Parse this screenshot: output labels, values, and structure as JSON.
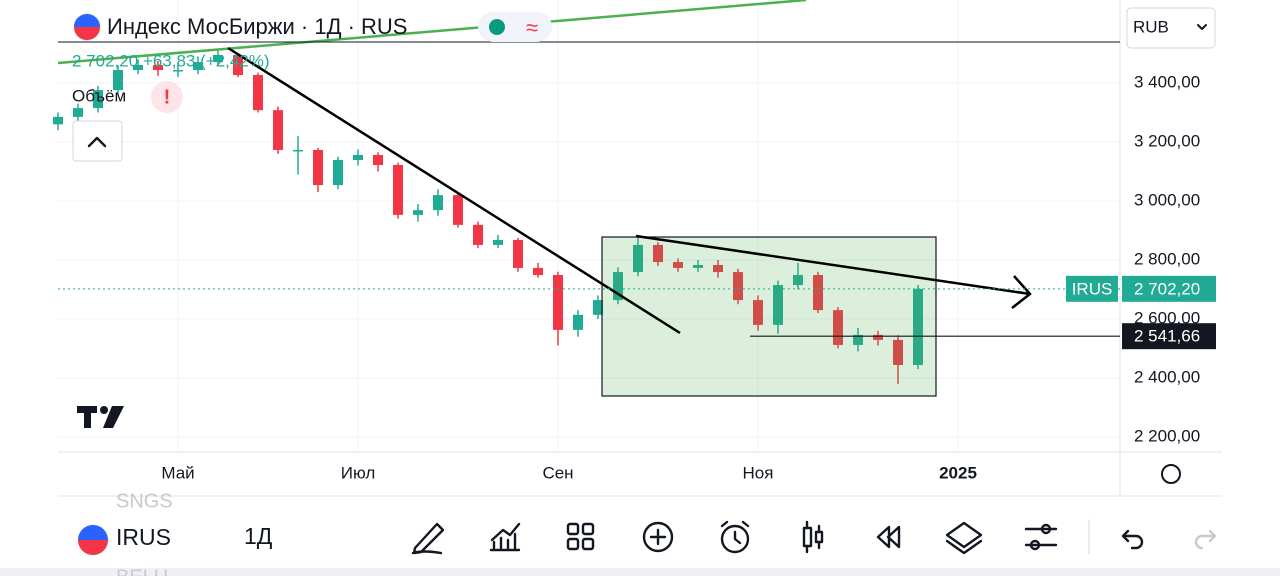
{
  "header": {
    "title": "Индекс МосБиржи · 1Д · RUS",
    "quote": "2 702,20 +63,83 (+2,42%)",
    "volume_label": "Объём",
    "currency": "RUB"
  },
  "chart_data": {
    "type": "candlestick",
    "categories": [
      null,
      null,
      null,
      null,
      null,
      null,
      "Май",
      null,
      null,
      null,
      null,
      null,
      null,
      null,
      null,
      "Июл",
      null,
      null,
      null,
      null,
      null,
      null,
      null,
      null,
      null,
      "Сен",
      null,
      null,
      null,
      null,
      null,
      null,
      null,
      null,
      null,
      "Ноя",
      null,
      null,
      null,
      null,
      null,
      null,
      null,
      null,
      null,
      "2025",
      null,
      null,
      null,
      null,
      null,
      null,
      null,
      null
    ],
    "open": [
      3260,
      3285,
      3315,
      3376,
      3444,
      3461,
      3444,
      3444,
      3471,
      3495,
      3427,
      3308,
      3173,
      3173,
      3054,
      3139,
      3156,
      3122,
      2953,
      2969,
      3020,
      2919,
      2851,
      2868,
      2773,
      2749,
      2563,
      2614,
      2664,
      2759,
      2851,
      2793,
      2773,
      2783,
      2759,
      2664,
      2580,
      2715,
      2749,
      2630,
      2512,
      2546,
      2529,
      2444,
      null,
      null,
      null,
      null,
      null,
      null,
      null,
      null,
      null,
      null
    ],
    "high": [
      3300,
      3330,
      3390,
      3460,
      3480,
      3475,
      3465,
      3490,
      3510,
      3500,
      3435,
      3320,
      3220,
      3180,
      3150,
      3175,
      3165,
      3130,
      2990,
      3040,
      3030,
      2930,
      2885,
      2875,
      2790,
      2760,
      2630,
      2680,
      2775,
      2880,
      2860,
      2805,
      2800,
      2800,
      2770,
      2680,
      2730,
      2790,
      2760,
      2640,
      2570,
      2560,
      2545,
      2715,
      null,
      null,
      null,
      null,
      null,
      null,
      null,
      null,
      null,
      null
    ],
    "low": [
      3240,
      3270,
      3300,
      3365,
      3430,
      3425,
      3420,
      3430,
      3460,
      3420,
      3300,
      3160,
      3090,
      3030,
      3040,
      3120,
      3100,
      2940,
      2930,
      2950,
      2910,
      2840,
      2840,
      2760,
      2740,
      2510,
      2540,
      2600,
      2650,
      2745,
      2780,
      2760,
      2760,
      2740,
      2650,
      2560,
      2550,
      2700,
      2620,
      2500,
      2490,
      2510,
      2380,
      2430,
      null,
      null,
      null,
      null,
      null,
      null,
      null,
      null,
      null,
      null
    ],
    "close": [
      3285,
      3315,
      3376,
      3444,
      3461,
      3444,
      3444,
      3471,
      3495,
      3427,
      3308,
      3173,
      3173,
      3054,
      3139,
      3156,
      3122,
      2953,
      2969,
      3020,
      2919,
      2851,
      2868,
      2773,
      2749,
      2563,
      2614,
      2664,
      2759,
      2851,
      2793,
      2773,
      2783,
      2759,
      2664,
      2580,
      2715,
      2749,
      2630,
      2512,
      2546,
      2529,
      2444,
      2702.2,
      null,
      null,
      null,
      null,
      null,
      null,
      null,
      null,
      null,
      null
    ],
    "up_color": "#22ab94",
    "down_color": "#f23645",
    "ylim": [
      2149,
      3539
    ],
    "yticks": [
      {
        "value": 2200,
        "label": "2 200,00"
      },
      {
        "value": 2400,
        "label": "2 400,00"
      },
      {
        "value": 2600,
        "label": "2 600,00"
      },
      {
        "value": 2800,
        "label": "2 800,00"
      },
      {
        "value": 3000,
        "label": "3 000,00"
      },
      {
        "value": 3200,
        "label": "3 200,00"
      },
      {
        "value": 3400,
        "label": "3 400,00"
      }
    ],
    "grid": true,
    "last_price": {
      "symbol": "IRUS",
      "value": 2702.2,
      "label": "2 702,20"
    },
    "price_line": {
      "value": 2541.66,
      "label": "2 541,66"
    }
  },
  "toolbar": {
    "prev_symbol": "SNGS",
    "symbol": "IRUS",
    "next_symbol": "BELU",
    "interval": "1Д"
  }
}
